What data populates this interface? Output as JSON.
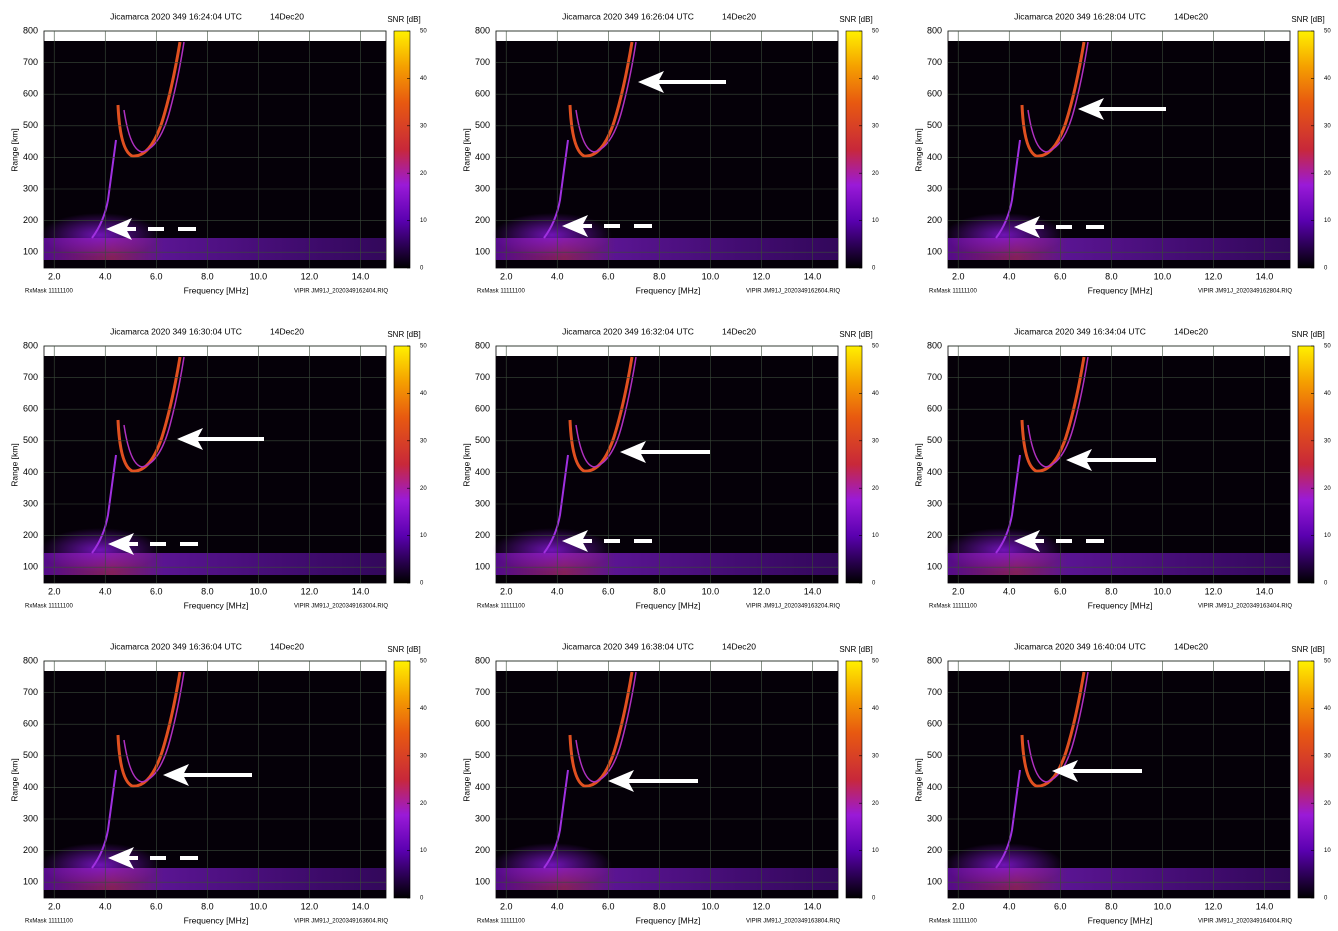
{
  "chart_data": [
    {
      "type": "ionogram",
      "title": "Jicamarca 2020 349 16:24:04 UTC",
      "date": "14Dec20",
      "xlabel": "Frequency [MHz]",
      "ylabel": "Range [km]",
      "colorbar_label": "SNR [dB]",
      "footer_left": "RxMask 11111100",
      "footer_right": "VIPIR  JM91J_2020349162404.RIQ",
      "xlim": [
        1.6,
        15.0
      ],
      "xticks": [
        {
          "value": 2,
          "label": "2.0"
        },
        {
          "value": 4,
          "label": "4.0"
        },
        {
          "value": 6,
          "label": "6.0"
        },
        {
          "value": 8,
          "label": "8.0"
        },
        {
          "value": 10,
          "label": "10.0"
        },
        {
          "value": 12,
          "label": "12.0"
        },
        {
          "value": 14,
          "label": "14.0"
        }
      ],
      "ylim": [
        50,
        800
      ],
      "yticks": [
        100,
        200,
        300,
        400,
        500,
        600,
        700,
        800
      ],
      "clim": [
        0,
        50
      ],
      "cticks": [
        0,
        10,
        20,
        30,
        40,
        50
      ],
      "grid": true
    },
    {
      "type": "ionogram",
      "title": "Jicamarca 2020 349 16:26:04 UTC",
      "date": "14Dec20",
      "xlabel": "Frequency [MHz]",
      "ylabel": "Range [km]",
      "colorbar_label": "SNR [dB]",
      "footer_left": "RxMask 11111100",
      "footer_right": "VIPIR  JM91J_2020349162604.RIQ",
      "xlim": [
        1.6,
        15.0
      ],
      "xticks": [
        {
          "value": 2,
          "label": "2.0"
        },
        {
          "value": 4,
          "label": "4.0"
        },
        {
          "value": 6,
          "label": "6.0"
        },
        {
          "value": 8,
          "label": "8.0"
        },
        {
          "value": 10,
          "label": "10.0"
        },
        {
          "value": 12,
          "label": "12.0"
        },
        {
          "value": 14,
          "label": "14.0"
        }
      ],
      "ylim": [
        50,
        800
      ],
      "yticks": [
        100,
        200,
        300,
        400,
        500,
        600,
        700,
        800
      ],
      "clim": [
        0,
        50
      ],
      "cticks": [
        0,
        10,
        20,
        30,
        40,
        50
      ],
      "grid": true
    },
    {
      "type": "ionogram",
      "title": "Jicamarca 2020 349 16:28:04 UTC",
      "date": "14Dec20",
      "xlabel": "Frequency [MHz]",
      "ylabel": "Range [km]",
      "colorbar_label": "SNR [dB]",
      "footer_left": "RxMask 11111100",
      "footer_right": "VIPIR  JM91J_2020349162804.RIQ",
      "xlim": [
        1.6,
        15.0
      ],
      "xticks": [
        {
          "value": 2,
          "label": "2.0"
        },
        {
          "value": 4,
          "label": "4.0"
        },
        {
          "value": 6,
          "label": "6.0"
        },
        {
          "value": 8,
          "label": "8.0"
        },
        {
          "value": 10,
          "label": "10.0"
        },
        {
          "value": 12,
          "label": "12.0"
        },
        {
          "value": 14,
          "label": "14.0"
        }
      ],
      "ylim": [
        50,
        800
      ],
      "yticks": [
        100,
        200,
        300,
        400,
        500,
        600,
        700,
        800
      ],
      "clim": [
        0,
        50
      ],
      "cticks": [
        0,
        10,
        20,
        30,
        40,
        50
      ],
      "grid": true
    },
    {
      "type": "ionogram",
      "title": "Jicamarca 2020 349 16:30:04 UTC",
      "date": "14Dec20",
      "xlabel": "Frequency [MHz]",
      "ylabel": "Range [km]",
      "colorbar_label": "SNR [dB]",
      "footer_left": "RxMask 11111100",
      "footer_right": "VIPIR  JM91J_2020349163004.RIQ",
      "xlim": [
        1.6,
        15.0
      ],
      "xticks": [
        {
          "value": 2,
          "label": "2.0"
        },
        {
          "value": 4,
          "label": "4.0"
        },
        {
          "value": 6,
          "label": "6.0"
        },
        {
          "value": 8,
          "label": "8.0"
        },
        {
          "value": 10,
          "label": "10.0"
        },
        {
          "value": 12,
          "label": "12.0"
        },
        {
          "value": 14,
          "label": "14.0"
        }
      ],
      "ylim": [
        50,
        800
      ],
      "yticks": [
        100,
        200,
        300,
        400,
        500,
        600,
        700,
        800
      ],
      "clim": [
        0,
        50
      ],
      "cticks": [
        0,
        10,
        20,
        30,
        40,
        50
      ],
      "grid": true
    },
    {
      "type": "ionogram",
      "title": "Jicamarca 2020 349 16:32:04 UTC",
      "date": "14Dec20",
      "xlabel": "Frequency [MHz]",
      "ylabel": "Range [km]",
      "colorbar_label": "SNR [dB]",
      "footer_left": "RxMask 11111100",
      "footer_right": "VIPIR  JM91J_2020349163204.RIQ",
      "xlim": [
        1.6,
        15.0
      ],
      "xticks": [
        {
          "value": 2,
          "label": "2.0"
        },
        {
          "value": 4,
          "label": "4.0"
        },
        {
          "value": 6,
          "label": "6.0"
        },
        {
          "value": 8,
          "label": "8.0"
        },
        {
          "value": 10,
          "label": "10.0"
        },
        {
          "value": 12,
          "label": "12.0"
        },
        {
          "value": 14,
          "label": "14.0"
        }
      ],
      "ylim": [
        50,
        800
      ],
      "yticks": [
        100,
        200,
        300,
        400,
        500,
        600,
        700,
        800
      ],
      "clim": [
        0,
        50
      ],
      "cticks": [
        0,
        10,
        20,
        30,
        40,
        50
      ],
      "grid": true
    },
    {
      "type": "ionogram",
      "title": "Jicamarca 2020 349 16:34:04 UTC",
      "date": "14Dec20",
      "xlabel": "Frequency [MHz]",
      "ylabel": "Range [km]",
      "colorbar_label": "SNR [dB]",
      "footer_left": "RxMask 11111100",
      "footer_right": "VIPIR  JM91J_2020349163404.RIQ",
      "xlim": [
        1.6,
        15.0
      ],
      "xticks": [
        {
          "value": 2,
          "label": "2.0"
        },
        {
          "value": 4,
          "label": "4.0"
        },
        {
          "value": 6,
          "label": "6.0"
        },
        {
          "value": 8,
          "label": "8.0"
        },
        {
          "value": 10,
          "label": "10.0"
        },
        {
          "value": 12,
          "label": "12.0"
        },
        {
          "value": 14,
          "label": "14.0"
        }
      ],
      "ylim": [
        50,
        800
      ],
      "yticks": [
        100,
        200,
        300,
        400,
        500,
        600,
        700,
        800
      ],
      "clim": [
        0,
        50
      ],
      "cticks": [
        0,
        10,
        20,
        30,
        40,
        50
      ],
      "grid": true
    },
    {
      "type": "ionogram",
      "title": "Jicamarca 2020 349 16:36:04 UTC",
      "date": "14Dec20",
      "xlabel": "Frequency [MHz]",
      "ylabel": "Range [km]",
      "colorbar_label": "SNR [dB]",
      "footer_left": "RxMask 11111100",
      "footer_right": "VIPIR  JM91J_2020349163604.RIQ",
      "xlim": [
        1.6,
        15.0
      ],
      "xticks": [
        {
          "value": 2,
          "label": "2.0"
        },
        {
          "value": 4,
          "label": "4.0"
        },
        {
          "value": 6,
          "label": "6.0"
        },
        {
          "value": 8,
          "label": "8.0"
        },
        {
          "value": 10,
          "label": "10.0"
        },
        {
          "value": 12,
          "label": "12.0"
        },
        {
          "value": 14,
          "label": "14.0"
        }
      ],
      "ylim": [
        50,
        800
      ],
      "yticks": [
        100,
        200,
        300,
        400,
        500,
        600,
        700,
        800
      ],
      "clim": [
        0,
        50
      ],
      "cticks": [
        0,
        10,
        20,
        30,
        40,
        50
      ],
      "grid": true
    },
    {
      "type": "ionogram",
      "title": "Jicamarca 2020 349 16:38:04 UTC",
      "date": "14Dec20",
      "xlabel": "Frequency [MHz]",
      "ylabel": "Range [km]",
      "colorbar_label": "SNR [dB]",
      "footer_left": "RxMask 11111100",
      "footer_right": "VIPIR  JM91J_2020349163804.RIQ",
      "xlim": [
        1.6,
        15.0
      ],
      "xticks": [
        {
          "value": 2,
          "label": "2.0"
        },
        {
          "value": 4,
          "label": "4.0"
        },
        {
          "value": 6,
          "label": "6.0"
        },
        {
          "value": 8,
          "label": "8.0"
        },
        {
          "value": 10,
          "label": "10.0"
        },
        {
          "value": 12,
          "label": "12.0"
        },
        {
          "value": 14,
          "label": "14.0"
        }
      ],
      "ylim": [
        50,
        800
      ],
      "yticks": [
        100,
        200,
        300,
        400,
        500,
        600,
        700,
        800
      ],
      "clim": [
        0,
        50
      ],
      "cticks": [
        0,
        10,
        20,
        30,
        40,
        50
      ],
      "grid": true
    },
    {
      "type": "ionogram",
      "title": "Jicamarca 2020 349 16:40:04 UTC",
      "date": "14Dec20",
      "xlabel": "Frequency [MHz]",
      "ylabel": "Range [km]",
      "colorbar_label": "SNR [dB]",
      "footer_left": "RxMask 11111100",
      "footer_right": "VIPIR  JM91J_2020349164004.RIQ",
      "xlim": [
        1.6,
        15.0
      ],
      "xticks": [
        {
          "value": 2,
          "label": "2.0"
        },
        {
          "value": 4,
          "label": "4.0"
        },
        {
          "value": 6,
          "label": "6.0"
        },
        {
          "value": 8,
          "label": "8.0"
        },
        {
          "value": 10,
          "label": "10.0"
        },
        {
          "value": 12,
          "label": "12.0"
        },
        {
          "value": 14,
          "label": "14.0"
        }
      ],
      "ylim": [
        50,
        800
      ],
      "yticks": [
        100,
        200,
        300,
        400,
        500,
        600,
        700,
        800
      ],
      "clim": [
        0,
        50
      ],
      "cticks": [
        0,
        10,
        20,
        30,
        40,
        50
      ],
      "grid": true
    }
  ]
}
